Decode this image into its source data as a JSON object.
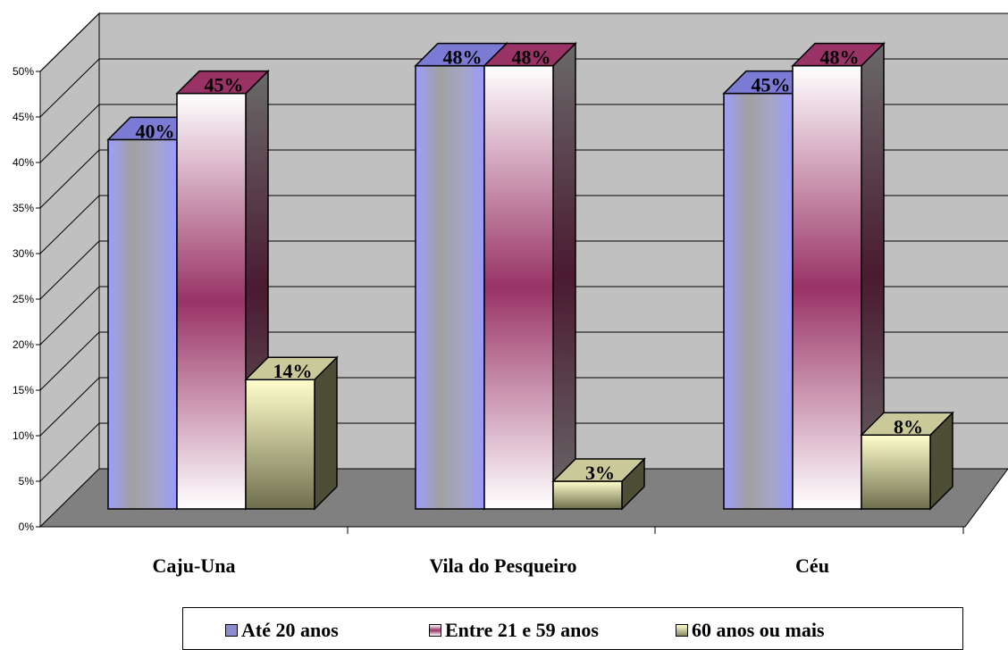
{
  "chart_data": {
    "type": "bar",
    "style": "3d-clustered-column",
    "categories": [
      "Caju-Una",
      "Vila do Pesqueiro",
      "Céu"
    ],
    "series": [
      {
        "name": "Até 20 anos",
        "values": [
          40,
          48,
          45
        ],
        "labels": [
          "40%",
          "48%",
          "45%"
        ],
        "color": "#9999ff"
      },
      {
        "name": "Entre 21 e 59 anos",
        "values": [
          45,
          48,
          48
        ],
        "labels": [
          "45%",
          "48%",
          "48%"
        ],
        "color": "#993366"
      },
      {
        "name": "60 anos ou mais",
        "values": [
          14,
          3,
          8
        ],
        "labels": [
          "14%",
          "3%",
          "8%"
        ],
        "color": "#ffffcc"
      }
    ],
    "y_ticks": [
      "0%",
      "5%",
      "10%",
      "15%",
      "20%",
      "25%",
      "30%",
      "35%",
      "40%",
      "45%",
      "50%"
    ],
    "ylim": [
      0,
      50
    ],
    "grid": true,
    "legend_position": "bottom",
    "wall_color": "#c0c0c0",
    "floor_color": "#808080"
  }
}
